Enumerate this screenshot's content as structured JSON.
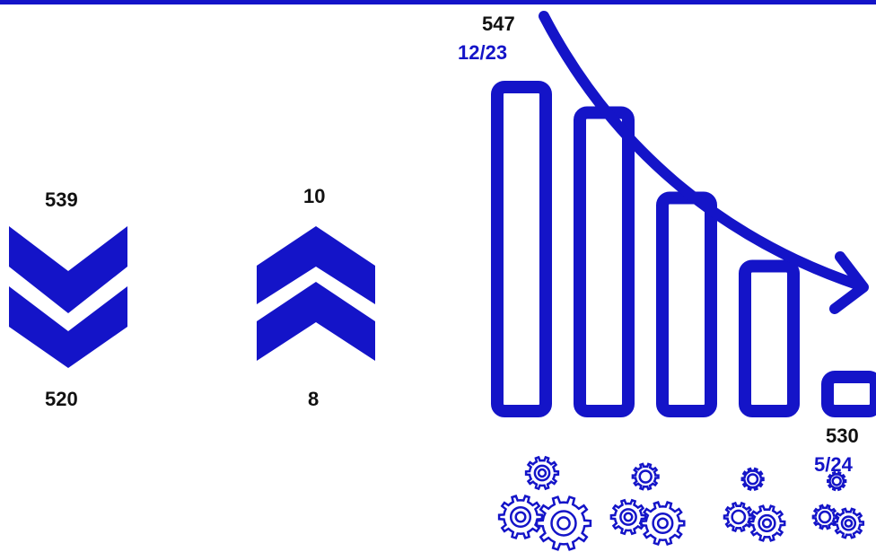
{
  "colors": {
    "accent": "#1414c8",
    "text": "#111111"
  },
  "left_indicator": {
    "top_value": "539",
    "bottom_value": "520",
    "icon": "double-chevron-down-icon"
  },
  "middle_indicator": {
    "top_value": "10",
    "bottom_value": "8",
    "icon": "double-chevron-up-icon"
  },
  "trend": {
    "start_value": "547",
    "start_date": "12/23",
    "end_value": "530",
    "end_date": "5/24",
    "arrow_icon": "curved-down-arrow-icon",
    "gear_icon": "gear-cluster-icon"
  },
  "chart_data": {
    "type": "bar",
    "values": [
      547,
      545.5,
      540.5,
      536.5,
      530
    ],
    "start": {
      "value": 547,
      "label": "12/23"
    },
    "end": {
      "value": 530,
      "label": "5/24"
    }
  }
}
